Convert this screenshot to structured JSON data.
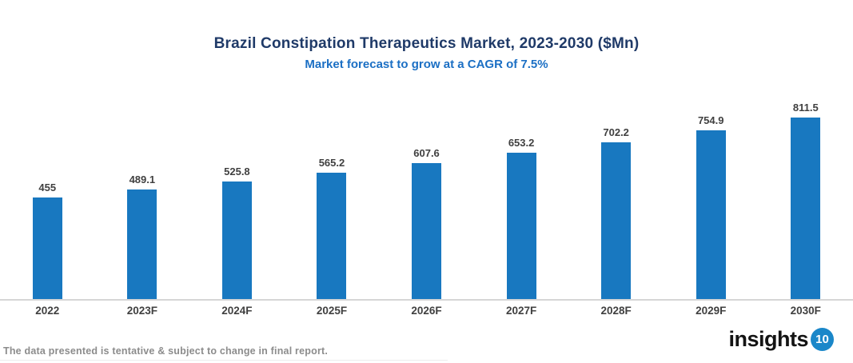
{
  "chart_data": {
    "type": "bar",
    "title": "Brazil Constipation Therapeutics Market, 2023-2030 ($Mn)",
    "subtitle": "Market forecast to grow at a CAGR of 7.5%",
    "categories": [
      "2022",
      "2023F",
      "2024F",
      "2025F",
      "2026F",
      "2027F",
      "2028F",
      "2029F",
      "2030F"
    ],
    "values": [
      455,
      489.1,
      525.8,
      565.2,
      607.6,
      653.2,
      702.2,
      754.9,
      811.5
    ],
    "value_labels": [
      "455",
      "489.1",
      "525.8",
      "565.2",
      "607.6",
      "653.2",
      "702.2",
      "754.9",
      "811.5"
    ],
    "xlabel": "",
    "ylabel": "",
    "ylim": [
      0,
      860
    ],
    "grid": false,
    "legend_position": "none",
    "y_axis_visible": false,
    "data_labels_position": "above-bars"
  },
  "theme": {
    "title": "#1F3A68",
    "subtitle": "#1B6FC4",
    "bar": "#1878C0",
    "label": "#404040",
    "axis": "#D6D6D6",
    "footer_text": "#8C8C8C",
    "logo_text": "#141414",
    "logo_badge": "#1A87C9"
  },
  "footer": {
    "note": "The data presented is tentative & subject to change in final report.",
    "logo_text": "insights",
    "logo_badge": "10"
  }
}
